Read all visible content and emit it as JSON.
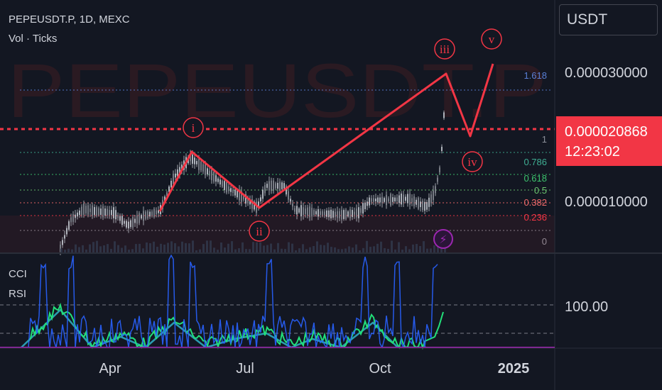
{
  "header": {
    "title": "PEPEUSDT.P, 1D, MEXC",
    "subtitle": "Vol · Ticks"
  },
  "watermark": "PEPEUSDT.P",
  "currency": "USDT",
  "last_price": {
    "value": "0.000020868",
    "countdown": "12:23:02"
  },
  "indicators": [
    "CCI",
    "RSI"
  ],
  "colors": {
    "background": "#131722",
    "wave": "#f23645",
    "candle": "#b8bcc4",
    "cci": "#2962ff",
    "rsi": "#22e07a",
    "rsi_avg": "#2a9cb0",
    "fib_top": "#5b7fd6",
    "fib_786": "#3fae93",
    "fib_618": "#3cc46d",
    "fib_5": "#6ac46e",
    "fib_382": "#f26b6b",
    "fib_236": "#f23645",
    "fib_0": "#8c8f99",
    "lightning": "#9c27b0"
  },
  "chart_data": {
    "type": "line",
    "price_axis": {
      "labels": [
        "0.000030000",
        "0.000010000"
      ],
      "values": [
        3e-05,
        1e-05
      ]
    },
    "time_axis": {
      "labels": [
        "Apr",
        "Jul",
        "Oct",
        "2025"
      ]
    },
    "fib_levels": [
      {
        "label": "1.618",
        "color_key": "fib_top"
      },
      {
        "label": "1",
        "color_key": "fib_0",
        "red_dashed": true
      },
      {
        "label": "0.786",
        "color_key": "fib_786"
      },
      {
        "label": "0.618",
        "color_key": "fib_618"
      },
      {
        "label": "0.5",
        "color_key": "fib_5"
      },
      {
        "label": "0.382",
        "color_key": "fib_382"
      },
      {
        "label": "0.236",
        "color_key": "fib_236"
      },
      {
        "label": "0",
        "color_key": "fib_0"
      }
    ],
    "wave_labels": [
      "i",
      "ii",
      "iii",
      "iv",
      "v"
    ],
    "lower_pane": {
      "labels": [
        "100.00"
      ],
      "values": [
        100
      ]
    }
  }
}
